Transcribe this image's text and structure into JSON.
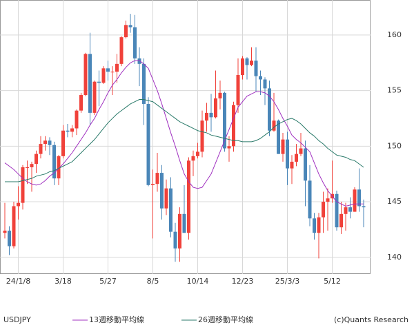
{
  "chart_data": {
    "type": "candlestick",
    "categories": [
      null,
      null,
      null,
      "24/1/8",
      null,
      null,
      null,
      null,
      null,
      null,
      null,
      null,
      null,
      "3/18",
      null,
      null,
      null,
      null,
      null,
      null,
      null,
      null,
      null,
      "5/27",
      null,
      null,
      null,
      null,
      null,
      null,
      null,
      null,
      null,
      "8/5",
      null,
      null,
      null,
      null,
      null,
      null,
      null,
      null,
      null,
      "10/14",
      null,
      null,
      null,
      null,
      null,
      null,
      null,
      null,
      null,
      "12/23",
      null,
      null,
      null,
      null,
      null,
      null,
      null,
      null,
      null,
      "25/3/3",
      null,
      null,
      null,
      null,
      null,
      null,
      null,
      null,
      null,
      "5/12",
      null,
      null,
      null,
      null,
      null,
      null,
      null
    ],
    "series": [
      {
        "name": "USDJPY",
        "type": "candlestick",
        "up_color": "#f0413a",
        "down_color": "#4a86b8",
        "open": [
          142.2,
          142.4,
          141.0,
          144.6,
          144.9,
          148.1,
          148.1,
          148.4,
          149.3,
          150.2,
          150.5,
          150.1,
          147.1,
          149.1,
          151.4,
          151.3,
          151.6,
          153.2,
          154.6,
          158.3,
          153.0,
          155.8,
          155.7,
          157.0,
          156.7,
          156.7,
          157.4,
          159.8,
          160.9,
          160.7,
          157.9,
          157.4,
          153.8,
          146.5,
          146.6,
          147.6,
          144.4,
          146.2,
          142.3,
          140.8,
          143.9,
          142.2,
          148.7,
          149.1,
          149.5,
          152.3,
          153.0,
          152.6,
          154.3,
          154.8,
          149.8,
          150.0,
          153.7,
          156.4,
          157.9,
          157.3,
          157.7,
          156.3,
          156.0,
          155.2,
          151.4,
          152.3,
          149.3,
          150.6,
          148.0,
          148.6,
          149.3,
          149.8,
          146.9,
          143.5,
          142.2,
          143.6,
          145.0,
          145.3,
          145.7,
          142.7,
          143.9,
          144.5,
          144.1,
          146.1,
          144.6
        ],
        "high": [
          144.9,
          142.8,
          145.0,
          146.4,
          148.3,
          148.7,
          148.6,
          149.6,
          150.9,
          150.9,
          150.8,
          150.4,
          149.2,
          151.9,
          152.0,
          151.9,
          153.3,
          154.8,
          158.4,
          160.2,
          155.9,
          156.8,
          157.2,
          157.7,
          157.2,
          158.3,
          159.9,
          161.3,
          161.9,
          161.8,
          158.9,
          157.9,
          154.4,
          147.9,
          149.4,
          148.3,
          147.0,
          147.2,
          143.1,
          144.5,
          146.5,
          149.0,
          149.6,
          150.3,
          153.2,
          153.9,
          154.7,
          156.8,
          155.9,
          154.9,
          150.9,
          154.0,
          157.9,
          158.1,
          158.0,
          158.9,
          158.9,
          156.8,
          156.2,
          155.9,
          154.8,
          152.4,
          151.2,
          151.3,
          149.2,
          150.2,
          151.2,
          150.5,
          148.3,
          144.0,
          144.0,
          145.9,
          146.2,
          148.7,
          146.0,
          145.0,
          144.9,
          145.4,
          146.3,
          148.0,
          145.2
        ],
        "low": [
          141.7,
          140.2,
          140.8,
          143.4,
          144.3,
          146.6,
          145.9,
          147.6,
          148.9,
          149.6,
          149.2,
          146.5,
          146.5,
          148.9,
          150.8,
          150.8,
          151.0,
          153.0,
          154.5,
          151.9,
          152.8,
          153.6,
          155.6,
          155.9,
          154.6,
          155.7,
          157.2,
          159.7,
          160.2,
          157.4,
          155.4,
          151.9,
          146.4,
          141.7,
          145.9,
          143.4,
          143.8,
          141.8,
          139.6,
          139.6,
          142.4,
          141.6,
          147.3,
          148.9,
          149.0,
          151.3,
          151.3,
          152.5,
          153.3,
          149.5,
          148.6,
          149.5,
          153.0,
          156.0,
          156.0,
          157.2,
          154.9,
          154.6,
          153.7,
          150.9,
          151.3,
          149.3,
          148.6,
          146.5,
          146.6,
          148.2,
          149.1,
          144.6,
          142.8,
          141.6,
          139.9,
          142.2,
          142.4,
          144.9,
          142.4,
          142.1,
          142.4,
          143.5,
          144.1,
          144.1,
          142.7
        ],
        "close": [
          142.4,
          141.0,
          144.6,
          144.9,
          148.1,
          148.1,
          148.4,
          149.3,
          150.2,
          150.5,
          150.1,
          147.1,
          149.1,
          151.4,
          151.3,
          151.6,
          153.2,
          154.6,
          158.3,
          153.0,
          155.8,
          155.7,
          157.0,
          156.7,
          156.7,
          157.4,
          159.8,
          160.9,
          160.7,
          157.9,
          157.4,
          153.8,
          146.5,
          146.6,
          147.6,
          144.4,
          146.2,
          142.3,
          140.8,
          143.9,
          142.2,
          148.7,
          149.1,
          149.5,
          152.3,
          153.0,
          152.6,
          154.3,
          154.8,
          149.8,
          150.0,
          153.7,
          156.4,
          157.9,
          157.3,
          157.7,
          156.3,
          156.0,
          155.2,
          151.4,
          152.3,
          149.3,
          150.6,
          148.0,
          148.6,
          149.3,
          149.8,
          146.9,
          143.5,
          142.2,
          143.6,
          145.0,
          145.3,
          145.7,
          142.7,
          143.9,
          144.5,
          144.1,
          146.1,
          144.6,
          144.5
        ]
      },
      {
        "name": "13週移動平均線",
        "color": "#a030c0",
        "values": [
          148.5,
          148.2,
          147.9,
          147.5,
          147.1,
          146.8,
          146.6,
          146.5,
          146.6,
          146.9,
          147.3,
          147.6,
          148.0,
          148.4,
          148.9,
          149.4,
          150.0,
          150.6,
          151.2,
          151.9,
          152.5,
          153.3,
          154.0,
          154.8,
          155.5,
          156.0,
          156.6,
          157.1,
          157.5,
          157.7,
          157.7,
          157.4,
          157.0,
          156.0,
          155.0,
          153.8,
          152.5,
          151.2,
          150.0,
          148.7,
          147.5,
          146.8,
          146.3,
          146.2,
          146.3,
          146.9,
          147.5,
          148.5,
          149.5,
          150.5,
          151.5,
          152.5,
          153.5,
          154.0,
          154.5,
          154.7,
          154.9,
          154.9,
          154.8,
          154.5,
          154.0,
          153.3,
          152.5,
          151.8,
          151.0,
          150.6,
          150.3,
          149.9,
          149.5,
          148.5,
          147.5,
          146.7,
          146.0,
          145.5,
          145.0,
          144.8,
          144.6,
          144.7,
          144.8,
          144.8,
          144.8
        ]
      },
      {
        "name": "26週移動平均線",
        "color": "#2a7a6a",
        "values": [
          146.8,
          146.8,
          146.8,
          146.8,
          146.9,
          147.0,
          147.1,
          147.3,
          147.4,
          147.5,
          147.7,
          147.8,
          148.0,
          148.2,
          148.4,
          148.6,
          149.0,
          149.4,
          149.8,
          150.2,
          150.6,
          151.1,
          151.6,
          152.1,
          152.5,
          152.9,
          153.2,
          153.5,
          153.8,
          154.0,
          154.2,
          154.2,
          154.1,
          154.0,
          153.7,
          153.4,
          153.1,
          152.8,
          152.5,
          152.2,
          152.0,
          151.8,
          151.6,
          151.4,
          151.3,
          151.2,
          151.0,
          150.9,
          150.8,
          150.7,
          150.6,
          150.5,
          150.5,
          150.4,
          150.4,
          150.4,
          150.5,
          150.7,
          151.0,
          151.3,
          151.7,
          152.0,
          152.2,
          152.4,
          152.5,
          152.3,
          152.0,
          151.6,
          151.2,
          150.9,
          150.5,
          150.2,
          149.8,
          149.5,
          149.2,
          149.1,
          149.0,
          148.8,
          148.7,
          148.4,
          148.1
        ]
      }
    ],
    "ylim": [
      138.5,
      163.15
    ],
    "yticks": [
      140,
      145,
      150,
      155,
      160
    ],
    "y_axis_side": "right",
    "grid": true,
    "credit": "(c)Quants Research"
  }
}
